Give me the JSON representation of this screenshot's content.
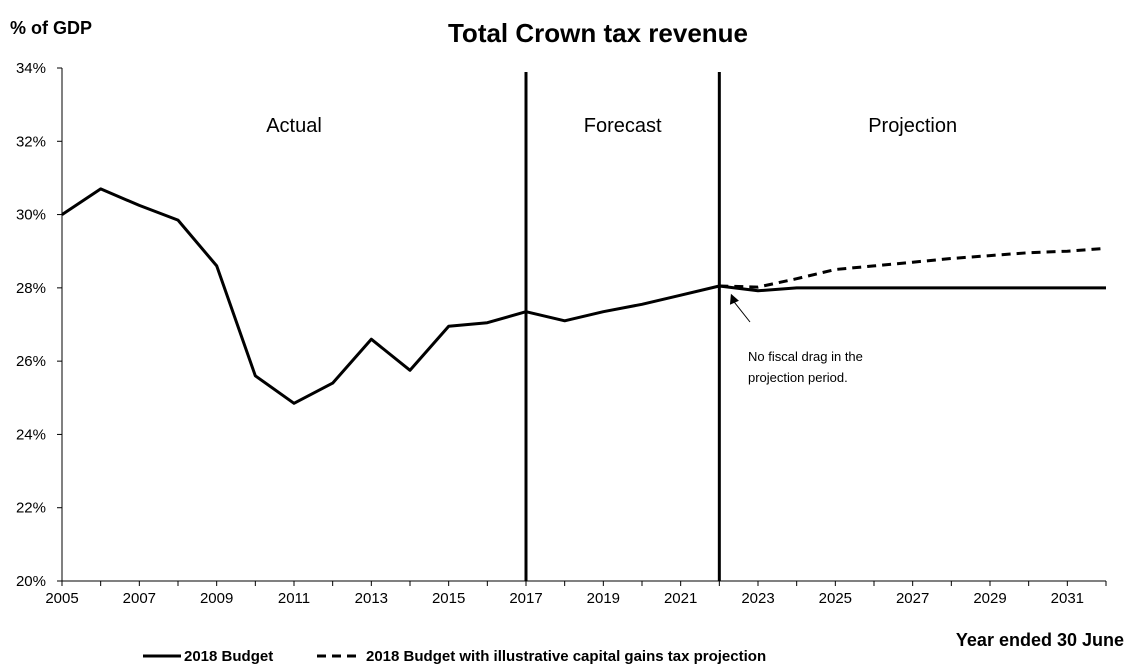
{
  "chart_data": {
    "type": "line",
    "title": "Total Crown tax revenue",
    "ylabel": "% of GDP",
    "xlabel": "Year ended 30 June",
    "xlim": [
      2005,
      2032
    ],
    "ylim": [
      20,
      34
    ],
    "x_ticks": [
      2005,
      2007,
      2009,
      2011,
      2013,
      2015,
      2017,
      2019,
      2021,
      2023,
      2025,
      2027,
      2029,
      2031
    ],
    "y_ticks": [
      20,
      22,
      24,
      26,
      28,
      30,
      32,
      34
    ],
    "y_tick_labels": [
      "20%",
      "22%",
      "24%",
      "26%",
      "28%",
      "30%",
      "32%",
      "34%"
    ],
    "x_tick_labels": [
      "2005",
      "2007",
      "2009",
      "2011",
      "2013",
      "2015",
      "2017",
      "2019",
      "2021",
      "2023",
      "2025",
      "2027",
      "2029",
      "2031"
    ],
    "grid": false,
    "legend_position": "bottom",
    "series": [
      {
        "name": "2018 Budget",
        "style": "solid",
        "color": "#000000",
        "x": [
          2005,
          2006,
          2007,
          2008,
          2009,
          2010,
          2011,
          2012,
          2013,
          2014,
          2015,
          2016,
          2017,
          2018,
          2019,
          2020,
          2021,
          2022,
          2023,
          2024,
          2025,
          2026,
          2027,
          2028,
          2029,
          2030,
          2031,
          2032
        ],
        "y": [
          30.0,
          30.7,
          30.25,
          29.85,
          28.6,
          25.6,
          24.85,
          25.4,
          26.6,
          25.75,
          26.95,
          27.05,
          27.35,
          27.1,
          27.35,
          27.55,
          27.8,
          28.05,
          27.92,
          28.0,
          28.0,
          28.0,
          28.0,
          28.0,
          28.0,
          28.0,
          28.0,
          28.0
        ]
      },
      {
        "name": "2018 Budget with illustrative capital gains tax projection",
        "style": "dashed",
        "color": "#000000",
        "x": [
          2022,
          2023,
          2024,
          2025,
          2026,
          2027,
          2028,
          2029,
          2030,
          2031,
          2032
        ],
        "y": [
          28.05,
          28.02,
          28.25,
          28.5,
          28.6,
          28.7,
          28.8,
          28.88,
          28.96,
          29.0,
          29.08
        ]
      }
    ],
    "dividers": [
      2017,
      2022
    ],
    "regions": [
      {
        "label": "Actual",
        "x": 2011
      },
      {
        "label": "Forecast",
        "x": 2019.5
      },
      {
        "label": "Projection",
        "x": 2027
      }
    ],
    "annotation": {
      "lines": [
        "No fiscal drag in the",
        "projection period."
      ],
      "point": [
        2022.3,
        27.95
      ]
    }
  }
}
